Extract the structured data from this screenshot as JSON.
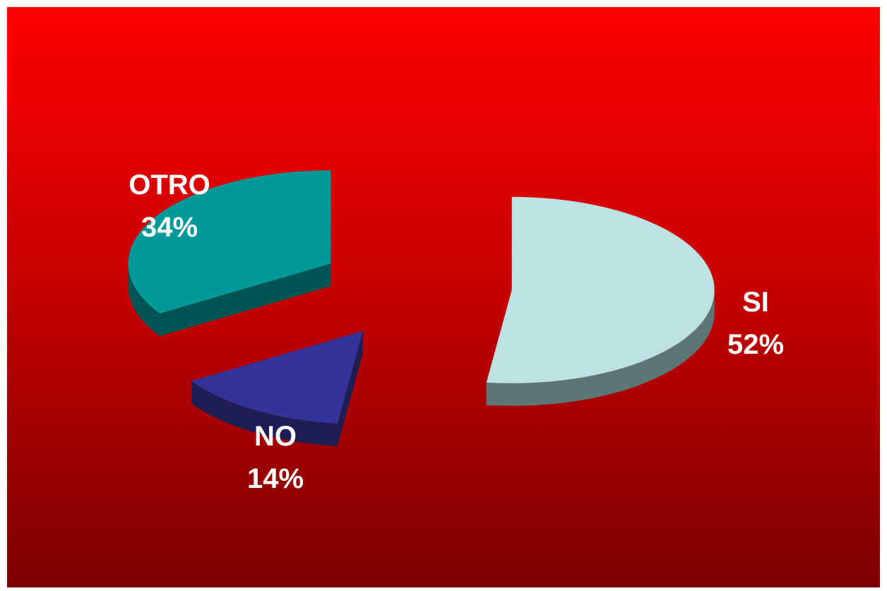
{
  "chart_data": {
    "type": "pie",
    "style": "3d-exploded",
    "slices": [
      {
        "label": "SI",
        "value": 52,
        "value_label": "52%",
        "color": "#bde2e4",
        "side_color": "#5e7576"
      },
      {
        "label": "NO",
        "value": 14,
        "value_label": "14%",
        "color": "#333399",
        "side_color": "#1e1e55"
      },
      {
        "label": "OTRO",
        "value": 34,
        "value_label": "34%",
        "color": "#009999",
        "side_color": "#005454"
      }
    ],
    "legend": "none",
    "background": {
      "top": "#ff0000",
      "bottom": "#7c0000"
    }
  }
}
